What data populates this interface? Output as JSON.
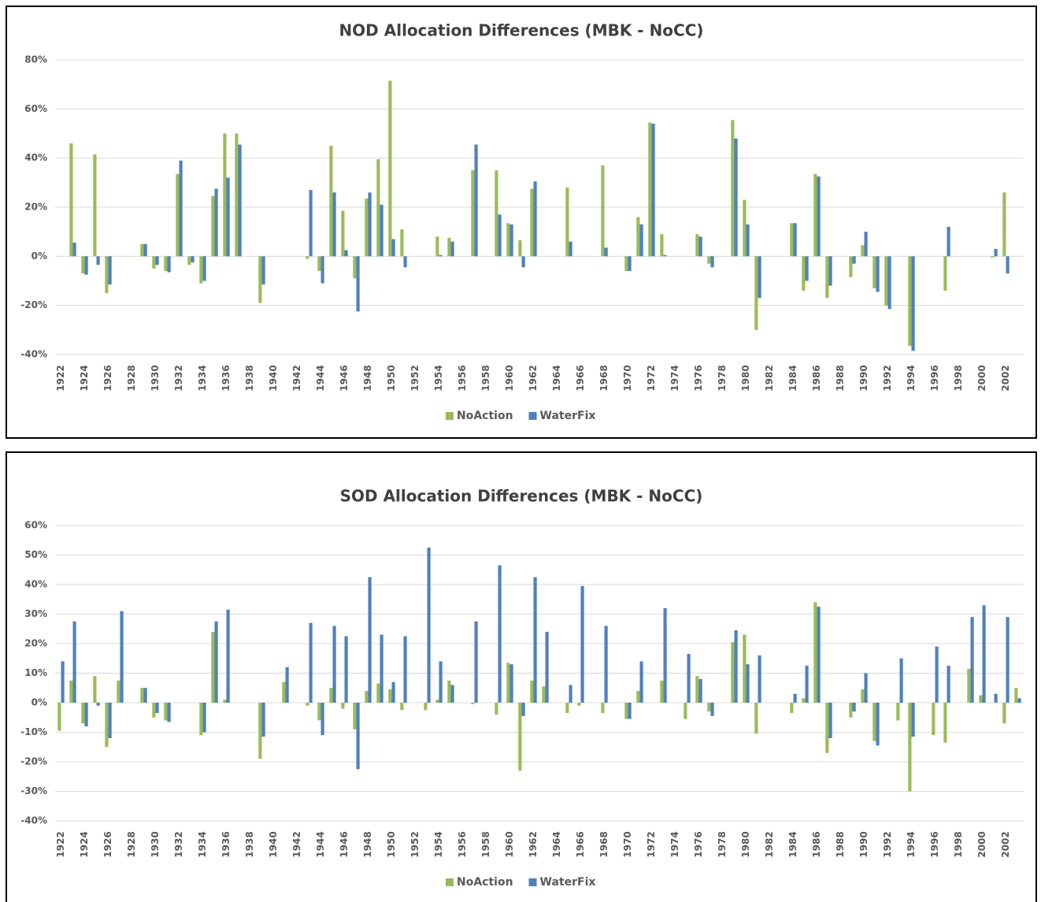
{
  "chart_data": [
    {
      "type": "bar",
      "title": "NOD Allocation Differences (MBK - NoCC)",
      "categories": [
        "1922",
        null,
        "1924",
        null,
        "1926",
        null,
        "1928",
        null,
        "1930",
        null,
        "1932",
        null,
        "1934",
        null,
        "1936",
        null,
        "1938",
        null,
        "1940",
        null,
        "1942",
        null,
        "1944",
        null,
        "1946",
        null,
        "1948",
        null,
        "1950",
        null,
        "1952",
        null,
        "1954",
        null,
        "1956",
        null,
        "1958",
        null,
        "1960",
        null,
        "1962",
        null,
        "1964",
        null,
        "1966",
        null,
        "1968",
        null,
        "1970",
        null,
        "1972",
        null,
        "1974",
        null,
        "1976",
        null,
        "1978",
        null,
        "1980",
        null,
        "1982",
        null,
        "1984",
        null,
        "1986",
        null,
        "1988",
        null,
        "1990",
        null,
        "1992",
        null,
        "1994",
        null,
        "1996",
        null,
        "1998",
        null,
        "2000",
        null,
        "2002",
        null
      ],
      "series": [
        {
          "name": "NoAction",
          "color": "#9bbb59",
          "values": [
            0,
            46,
            -7,
            41.5,
            -15,
            0,
            0,
            5,
            -5,
            -6,
            33.5,
            -3.5,
            -11,
            24.5,
            50,
            50,
            0,
            -19,
            0,
            0,
            0,
            -1,
            -6,
            45,
            18.5,
            -9,
            23.5,
            39.5,
            71.5,
            11,
            0,
            0,
            8,
            7.5,
            0,
            35,
            0,
            35,
            13.5,
            6.5,
            27.5,
            0,
            0,
            28,
            0,
            0,
            37,
            0,
            -6,
            16,
            54.5,
            9,
            0,
            0,
            9,
            -3,
            0,
            55.5,
            23,
            -30,
            0,
            0,
            13.5,
            -14,
            33.5,
            -17,
            0,
            -8.5,
            4.5,
            -13,
            -20,
            0,
            -36.5,
            0,
            0,
            -14,
            0,
            0,
            0,
            -0.5,
            26,
            0
          ]
        },
        {
          "name": "WaterFix",
          "color": "#4f81bd",
          "values": [
            0,
            5.5,
            -7.5,
            -3.5,
            -11.5,
            0,
            0,
            5,
            -3.5,
            -6.5,
            39,
            -2.5,
            -10,
            27.5,
            32,
            45.5,
            0,
            -11.5,
            0,
            0,
            0,
            27,
            -11,
            26,
            2.5,
            -22.5,
            26,
            21,
            7,
            -4.5,
            0,
            0,
            0.5,
            6,
            0,
            45.5,
            0,
            17,
            13,
            -4.5,
            30.5,
            0,
            0,
            6,
            0,
            0,
            3.5,
            0,
            -6,
            13,
            54,
            0.5,
            0,
            0,
            8,
            -4.5,
            0,
            48,
            13,
            -17,
            0,
            0,
            13.5,
            -10,
            32.5,
            -12,
            0,
            -3,
            10,
            -14.5,
            -21.5,
            0,
            -38.5,
            0,
            0,
            12,
            0,
            0,
            0,
            3,
            -7,
            0
          ]
        }
      ],
      "ylim": [
        -40,
        80
      ],
      "yticks": [
        {
          "value": -40,
          "label": "-40%"
        },
        {
          "value": -20,
          "label": "-20%"
        },
        {
          "value": 0,
          "label": "0%"
        },
        {
          "value": 20,
          "label": "20%"
        },
        {
          "value": 40,
          "label": "40%"
        },
        {
          "value": 60,
          "label": "60%"
        },
        {
          "value": 80,
          "label": "80%"
        }
      ],
      "grid": true,
      "legend": "bottom"
    },
    {
      "type": "bar",
      "title": "SOD Allocation Differences (MBK - NoCC)",
      "categories": [
        "1922",
        null,
        "1924",
        null,
        "1926",
        null,
        "1928",
        null,
        "1930",
        null,
        "1932",
        null,
        "1934",
        null,
        "1936",
        null,
        "1938",
        null,
        "1940",
        null,
        "1942",
        null,
        "1944",
        null,
        "1946",
        null,
        "1948",
        null,
        "1950",
        null,
        "1952",
        null,
        "1954",
        null,
        "1956",
        null,
        "1958",
        null,
        "1960",
        null,
        "1962",
        null,
        "1964",
        null,
        "1966",
        null,
        "1968",
        null,
        "1970",
        null,
        "1972",
        null,
        "1974",
        null,
        "1976",
        null,
        "1978",
        null,
        "1980",
        null,
        "1982",
        null,
        "1984",
        null,
        "1986",
        null,
        "1988",
        null,
        "1990",
        null,
        "1992",
        null,
        "1994",
        null,
        "1996",
        null,
        "1998",
        null,
        "2000",
        null,
        "2002",
        null
      ],
      "series": [
        {
          "name": "NoAction",
          "color": "#9bbb59",
          "values": [
            -9.5,
            7.5,
            -7,
            9,
            -15,
            7.5,
            0,
            5,
            -5,
            -6,
            0,
            0,
            -11,
            24,
            1,
            0,
            0,
            -19,
            0,
            7,
            0,
            -1,
            -6,
            5,
            -2,
            -9,
            4,
            6.5,
            4.5,
            -2.5,
            0,
            -2.5,
            1,
            7.5,
            0,
            -0.5,
            0,
            -4,
            13.5,
            -23,
            7.5,
            5.5,
            0,
            -3.5,
            -1,
            0,
            -3.5,
            0,
            -5.5,
            4,
            0,
            7.5,
            0,
            -5.5,
            9,
            -3,
            0,
            20.5,
            23,
            -10.5,
            0,
            0,
            -3.5,
            1.5,
            34,
            -17,
            0,
            -5,
            4.5,
            -13,
            0,
            -6,
            -30,
            0,
            -11,
            -13.5,
            0,
            11.5,
            2.5,
            0,
            -7,
            5
          ]
        },
        {
          "name": "WaterFix",
          "color": "#4f81bd",
          "values": [
            14,
            27.5,
            -8,
            -1,
            -12,
            31,
            0,
            5,
            -3.5,
            -6.5,
            0,
            0,
            -10,
            27.5,
            31.5,
            0,
            0,
            -11.5,
            0,
            12,
            0,
            27,
            -11,
            26,
            22.5,
            -22.5,
            42.5,
            23,
            7,
            22.5,
            0,
            52.5,
            14,
            6,
            0,
            27.5,
            0,
            46.5,
            13,
            -4.5,
            42.5,
            24,
            0,
            6,
            39.5,
            0,
            26,
            0,
            -5.5,
            14,
            0,
            32,
            0,
            16.5,
            8,
            -4.5,
            0,
            24.5,
            13,
            16,
            0,
            0,
            3,
            12.5,
            32.5,
            -12,
            0,
            -3,
            10,
            -14.5,
            0,
            15,
            -11.5,
            0,
            19,
            12.5,
            0,
            29,
            33,
            3,
            29,
            1.5
          ]
        }
      ],
      "ylim": [
        -40,
        60
      ],
      "yticks": [
        {
          "value": -40,
          "label": "-40%"
        },
        {
          "value": -30,
          "label": "-30%"
        },
        {
          "value": -20,
          "label": "-20%"
        },
        {
          "value": -10,
          "label": "-10%"
        },
        {
          "value": 0,
          "label": "0%"
        },
        {
          "value": 10,
          "label": "10%"
        },
        {
          "value": 20,
          "label": "20%"
        },
        {
          "value": 30,
          "label": "30%"
        },
        {
          "value": 40,
          "label": "40%"
        },
        {
          "value": 50,
          "label": "50%"
        },
        {
          "value": 60,
          "label": "60%"
        }
      ],
      "grid": true,
      "legend": "bottom"
    }
  ]
}
